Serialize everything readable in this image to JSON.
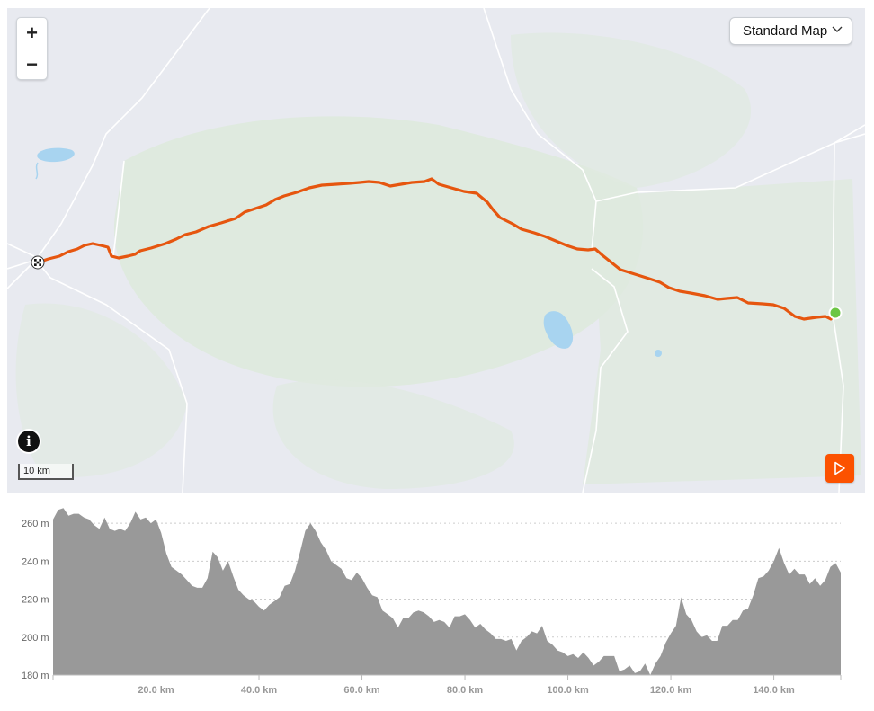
{
  "map": {
    "zoom_in_label": "+",
    "zoom_out_label": "−",
    "style_label": "Standard Map",
    "info_label": "i",
    "scale_label": "10 km",
    "route_color": "#e6560f",
    "start_marker_color": "#6cc644",
    "icons": {
      "zoom_in": "plus-icon",
      "zoom_out": "minus-icon",
      "style_dropdown": "chevron-down-icon",
      "info": "info-icon",
      "finish": "checkered-flag-icon",
      "start": "start-dot-icon",
      "play": "play-icon"
    }
  },
  "chart_data": {
    "type": "area",
    "title": "",
    "xlabel": "",
    "ylabel": "",
    "xlim": [
      0,
      153
    ],
    "ylim": [
      180,
      270
    ],
    "x_tick_labels": [
      "20.0 km",
      "40.0 km",
      "60.0 km",
      "80.0 km",
      "100.0 km",
      "120.0 km",
      "140.0 km"
    ],
    "x_ticks": [
      20,
      40,
      60,
      80,
      100,
      120,
      140
    ],
    "y_tick_labels": [
      "180 m",
      "200 m",
      "220 m",
      "240 m",
      "260 m"
    ],
    "y_ticks": [
      180,
      200,
      220,
      240,
      260
    ],
    "fill_color": "#999999",
    "grid": true,
    "series": [
      {
        "x": [
          0,
          1,
          2,
          3,
          4,
          5,
          6,
          7,
          8,
          9,
          10,
          11,
          12,
          13,
          14,
          15,
          16,
          17,
          18,
          19,
          20,
          21,
          22,
          23,
          24,
          25,
          26,
          27,
          28,
          29,
          30,
          31,
          32,
          33,
          34,
          35,
          36,
          37,
          38,
          39,
          40,
          41,
          42,
          43,
          44,
          45,
          46,
          47,
          48,
          49,
          50,
          51,
          52,
          53,
          54,
          55,
          56,
          57,
          58,
          59,
          60,
          61,
          62,
          63,
          64,
          65,
          66,
          67,
          68,
          69,
          70,
          71,
          72,
          73,
          74,
          75,
          76,
          77,
          78,
          79,
          80,
          81,
          82,
          83,
          84,
          85,
          86,
          87,
          88,
          89,
          90,
          91,
          92,
          93,
          94,
          95,
          96,
          97,
          98,
          99,
          100,
          101,
          102,
          103,
          104,
          105,
          106,
          107,
          108,
          109,
          110,
          111,
          112,
          113,
          114,
          115,
          116,
          117,
          118,
          119,
          120,
          121,
          122,
          123,
          124,
          125,
          126,
          127,
          128,
          129,
          130,
          131,
          132,
          133,
          134,
          135,
          136,
          137,
          138,
          139,
          140,
          141,
          142,
          143,
          144,
          145,
          146,
          147,
          148,
          149,
          150,
          151,
          152,
          153
        ],
        "values": [
          262,
          267,
          268,
          264,
          265,
          265,
          263,
          262,
          259,
          257,
          263,
          257,
          256,
          257,
          256,
          260,
          266,
          262,
          263,
          260,
          262,
          255,
          244,
          237,
          235,
          233,
          230,
          227,
          226,
          226,
          231,
          245,
          242,
          235,
          240,
          232,
          225,
          222,
          220,
          219,
          216,
          214,
          217,
          219,
          221,
          227,
          228,
          235,
          245,
          256,
          260,
          256,
          250,
          246,
          240,
          238,
          236,
          231,
          230,
          234,
          231,
          226,
          222,
          221,
          214,
          212,
          210,
          205,
          210,
          210,
          213,
          214,
          213,
          211,
          208,
          209,
          208,
          205,
          211,
          211,
          212,
          209,
          205,
          207,
          204,
          202,
          199,
          199,
          198,
          199,
          193,
          198,
          200,
          203,
          202,
          206,
          198,
          196,
          193,
          192,
          190,
          191,
          189,
          192,
          189,
          185,
          187,
          190,
          190,
          190,
          182,
          183,
          185,
          181,
          182,
          186,
          180,
          186,
          190,
          197,
          202,
          206,
          221,
          212,
          209,
          203,
          200,
          201,
          198,
          198,
          206,
          206,
          209,
          209,
          214,
          215,
          222,
          231,
          232,
          235,
          240,
          247,
          239,
          233,
          236,
          233,
          233,
          228,
          231,
          227,
          230,
          237,
          239,
          234
        ]
      }
    ]
  }
}
